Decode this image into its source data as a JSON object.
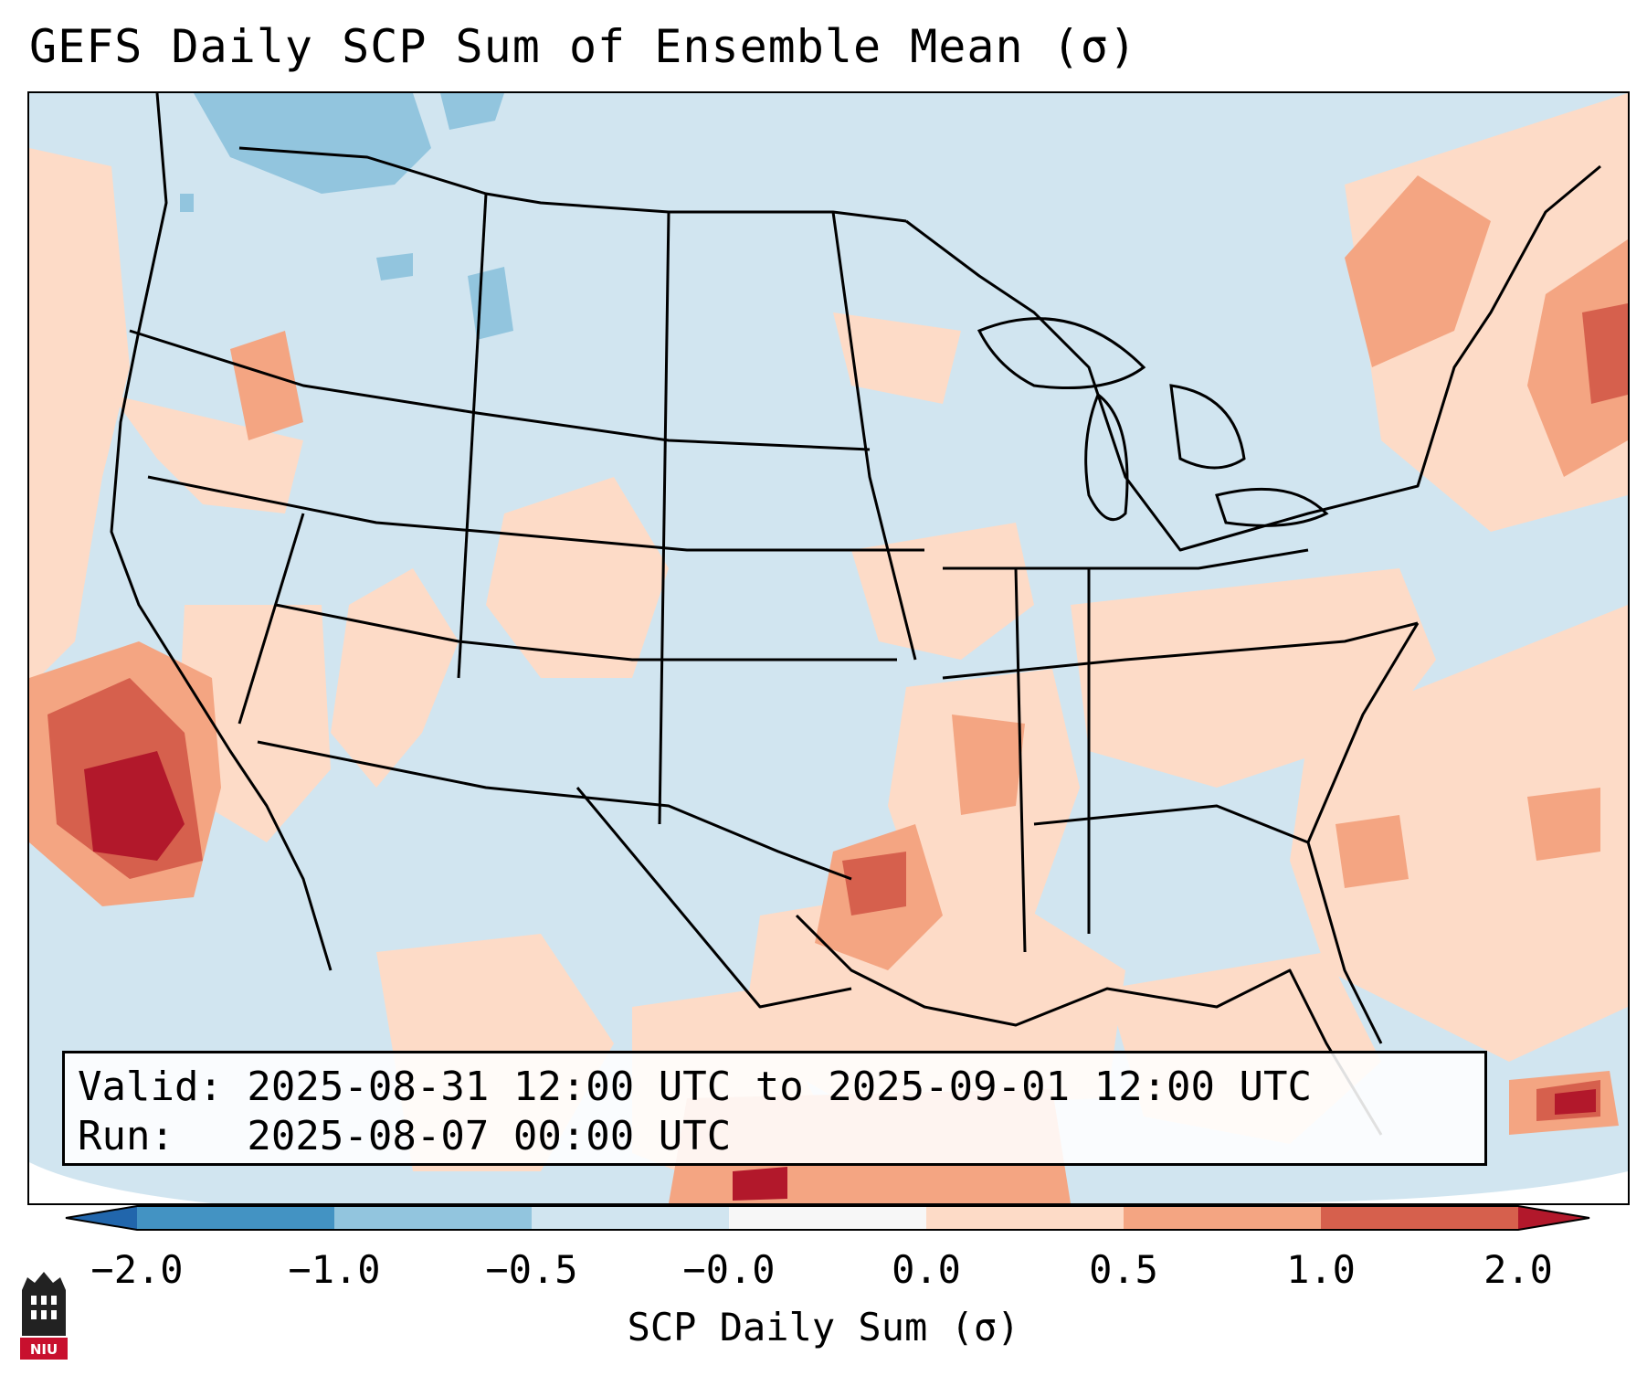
{
  "title": "GEFS Daily SCP Sum of Ensemble Mean (σ)",
  "info": {
    "valid_line": "Valid: 2025-08-31 12:00 UTC to 2025-09-01 12:00 UTC",
    "run_line": "Run:   2025-08-07 00:00 UTC"
  },
  "colorbar": {
    "label": "SCP Daily Sum (σ)",
    "ticks": [
      "−2.0",
      "−1.0",
      "−0.5",
      "−0.0",
      "0.0",
      "0.5",
      "1.0",
      "2.0"
    ],
    "colors": [
      "#2166ac",
      "#4393c3",
      "#92c5de",
      "#d1e5f0",
      "#f7f7f7",
      "#fddbc7",
      "#f4a582",
      "#d6604d",
      "#b2182b"
    ]
  },
  "logo": {
    "text": "NIU"
  },
  "map": {
    "background_color": "#d1e5f0",
    "warm_patches": [
      {
        "region": "northern-california-nevada",
        "level": 0.5
      },
      {
        "region": "baja-pacific",
        "level": 2.0
      },
      {
        "region": "southern-plains-texas",
        "level": 1.0
      },
      {
        "region": "lower-mississippi-valley",
        "level": 0.5
      },
      {
        "region": "southeast-us",
        "level": 0.5
      },
      {
        "region": "western-atlantic",
        "level": 0.5
      },
      {
        "region": "new-england-canada",
        "level": 1.0
      },
      {
        "region": "gulf-of-mexico-south",
        "level": 1.0
      },
      {
        "region": "caribbean",
        "level": 2.0
      }
    ],
    "cool_patches": [
      {
        "region": "pacific-northwest",
        "level": -0.5
      },
      {
        "region": "northern-rockies",
        "level": -0.5
      }
    ]
  }
}
